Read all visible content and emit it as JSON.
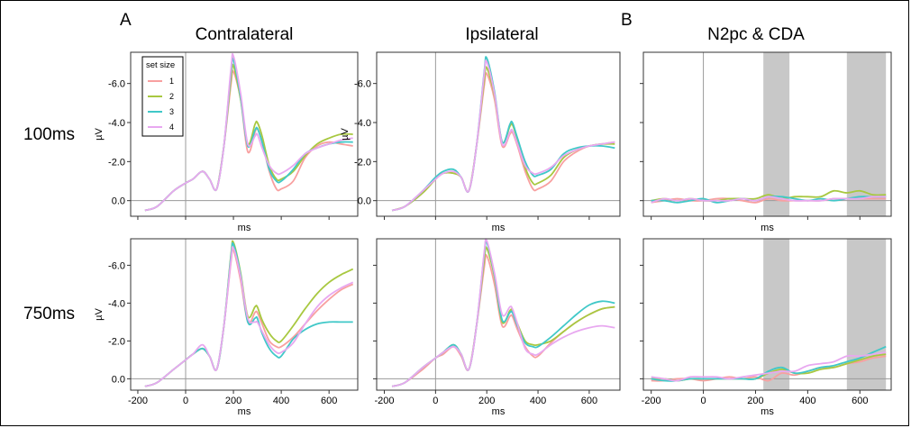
{
  "figure": {
    "panel_letters": [
      "A",
      "B"
    ],
    "column_titles": [
      "Contralateral",
      "Ipsilateral",
      "N2pc & CDA"
    ],
    "row_labels": [
      "100ms",
      "750ms"
    ],
    "legend": {
      "title": "set size",
      "entries": [
        "1",
        "2",
        "3",
        "4"
      ]
    },
    "colors": {
      "1": "#F8A0A0",
      "2": "#A8C840",
      "3": "#40C8C8",
      "4": "#E8A8F0"
    },
    "shade_color": "#C8C8C8"
  },
  "chart_data": [
    {
      "type": "line",
      "panel": "contralateral-100ms",
      "xlabel": "ms",
      "ylabel": "µV",
      "ylim": [
        0.8,
        -7.6
      ],
      "xlim": [
        -230,
        720
      ],
      "y_inverted": true,
      "yticks": [
        "-6.0",
        "-4.0",
        "-2.0",
        "0.0"
      ],
      "x": [
        -170,
        -120,
        -50,
        0,
        30,
        70,
        100,
        130,
        160,
        190,
        200,
        230,
        260,
        290,
        300,
        320,
        350,
        380,
        400,
        450,
        500,
        550,
        600,
        650,
        700
      ],
      "series": [
        {
          "name": "1",
          "values": [
            0.5,
            0.3,
            -0.5,
            -0.9,
            -1.1,
            -1.5,
            -1.1,
            -0.6,
            -2.8,
            -6.0,
            -6.6,
            -5.2,
            -2.5,
            -3.5,
            -3.7,
            -3.0,
            -1.5,
            -0.6,
            -0.6,
            -1.0,
            -2.2,
            -2.8,
            -3.0,
            -2.9,
            -2.8
          ]
        },
        {
          "name": "2",
          "values": [
            0.5,
            0.3,
            -0.5,
            -0.9,
            -1.1,
            -1.5,
            -1.1,
            -0.6,
            -2.8,
            -6.3,
            -6.9,
            -5.2,
            -2.9,
            -3.9,
            -4.0,
            -3.3,
            -1.8,
            -1.1,
            -1.1,
            -1.5,
            -2.3,
            -2.9,
            -3.2,
            -3.4,
            -3.4
          ]
        },
        {
          "name": "3",
          "values": [
            0.5,
            0.3,
            -0.5,
            -0.9,
            -1.1,
            -1.5,
            -1.1,
            -0.6,
            -2.8,
            -6.6,
            -7.2,
            -5.3,
            -2.8,
            -3.6,
            -3.7,
            -3.0,
            -1.6,
            -1.0,
            -1.0,
            -1.6,
            -2.4,
            -2.7,
            -2.9,
            -3.0,
            -3.0
          ]
        },
        {
          "name": "4",
          "values": [
            0.5,
            0.3,
            -0.5,
            -0.9,
            -1.1,
            -1.5,
            -1.1,
            -0.6,
            -2.8,
            -6.8,
            -7.4,
            -5.5,
            -2.9,
            -3.3,
            -3.4,
            -2.7,
            -1.8,
            -1.4,
            -1.4,
            -1.8,
            -2.4,
            -2.7,
            -2.9,
            -3.1,
            -3.2
          ]
        }
      ]
    },
    {
      "type": "line",
      "panel": "ipsilateral-100ms",
      "xlabel": "ms",
      "ylabel": "µV",
      "ylim": [
        0.8,
        -7.6
      ],
      "xlim": [
        -230,
        720
      ],
      "y_inverted": true,
      "yticks": [
        "-6.0",
        "-4.0",
        "-2.0",
        "0.0"
      ],
      "x": [
        -170,
        -120,
        -50,
        0,
        30,
        70,
        100,
        130,
        160,
        190,
        200,
        230,
        260,
        290,
        300,
        320,
        350,
        380,
        400,
        450,
        500,
        550,
        600,
        650,
        700
      ],
      "series": [
        {
          "name": "1",
          "values": [
            0.5,
            0.3,
            -0.4,
            -1.1,
            -1.4,
            -1.4,
            -1.2,
            -0.5,
            -2.8,
            -5.9,
            -6.5,
            -5.2,
            -2.8,
            -3.4,
            -3.5,
            -2.8,
            -1.5,
            -0.6,
            -0.6,
            -1.0,
            -2.0,
            -2.5,
            -2.8,
            -2.9,
            -3.0
          ]
        },
        {
          "name": "2",
          "values": [
            0.5,
            0.3,
            -0.4,
            -1.1,
            -1.4,
            -1.4,
            -1.2,
            -0.5,
            -2.8,
            -6.2,
            -6.8,
            -5.4,
            -3.0,
            -3.8,
            -3.9,
            -3.1,
            -1.7,
            -0.9,
            -0.9,
            -1.3,
            -2.2,
            -2.6,
            -2.8,
            -2.9,
            -2.9
          ]
        },
        {
          "name": "3",
          "values": [
            0.5,
            0.3,
            -0.5,
            -1.2,
            -1.5,
            -1.6,
            -1.2,
            -0.5,
            -2.8,
            -6.6,
            -7.3,
            -5.6,
            -3.0,
            -3.9,
            -4.0,
            -3.2,
            -2.0,
            -1.3,
            -1.3,
            -1.6,
            -2.4,
            -2.7,
            -2.8,
            -2.8,
            -2.7
          ]
        },
        {
          "name": "4",
          "values": [
            0.5,
            0.3,
            -0.5,
            -1.1,
            -1.4,
            -1.5,
            -1.2,
            -0.5,
            -2.8,
            -6.5,
            -7.1,
            -5.5,
            -2.9,
            -3.5,
            -3.6,
            -2.9,
            -1.8,
            -1.4,
            -1.4,
            -1.7,
            -2.3,
            -2.6,
            -2.8,
            -2.9,
            -3.0
          ]
        }
      ]
    },
    {
      "type": "line",
      "panel": "n2pc-cda-100ms",
      "xlabel": "ms",
      "ylabel": "",
      "ylim": [
        0.8,
        -7.6
      ],
      "xlim": [
        -230,
        720
      ],
      "y_inverted": true,
      "shaded_windows": [
        [
          230,
          330
        ],
        [
          550,
          700
        ]
      ],
      "x": [
        -200,
        -150,
        -100,
        -50,
        0,
        50,
        100,
        150,
        200,
        250,
        300,
        350,
        400,
        450,
        500,
        550,
        600,
        650,
        700
      ],
      "series": [
        {
          "name": "1",
          "values": [
            0.1,
            0.0,
            -0.1,
            0.0,
            0.0,
            -0.1,
            -0.1,
            0.0,
            0.1,
            -0.1,
            0.0,
            0.0,
            0.0,
            0.0,
            -0.1,
            -0.1,
            -0.1,
            -0.1,
            -0.1
          ]
        },
        {
          "name": "2",
          "values": [
            0.0,
            -0.1,
            0.0,
            -0.1,
            0.0,
            0.0,
            -0.1,
            -0.1,
            -0.1,
            -0.3,
            -0.1,
            -0.2,
            -0.2,
            -0.2,
            -0.5,
            -0.4,
            -0.5,
            -0.3,
            -0.3
          ]
        },
        {
          "name": "3",
          "values": [
            0.0,
            0.0,
            0.1,
            0.0,
            -0.1,
            0.1,
            0.0,
            -0.1,
            0.0,
            -0.2,
            -0.2,
            -0.1,
            0.0,
            -0.1,
            0.0,
            -0.1,
            -0.2,
            -0.2,
            -0.2
          ]
        },
        {
          "name": "4",
          "values": [
            0.1,
            -0.1,
            0.0,
            -0.1,
            0.0,
            0.0,
            0.0,
            -0.1,
            0.0,
            -0.2,
            -0.1,
            0.0,
            0.0,
            0.0,
            -0.1,
            -0.1,
            -0.1,
            -0.2,
            -0.2
          ]
        }
      ]
    },
    {
      "type": "line",
      "panel": "contralateral-750ms",
      "xlabel": "ms",
      "ylabel": "µV",
      "ylim": [
        0.6,
        -7.4
      ],
      "xlim": [
        -230,
        720
      ],
      "y_inverted": true,
      "yticks": [
        "-6.0",
        "-4.0",
        "-2.0",
        "0.0"
      ],
      "xticks": [
        "-200",
        "0",
        "200",
        "400",
        "600"
      ],
      "x": [
        -170,
        -120,
        -50,
        0,
        30,
        70,
        100,
        130,
        160,
        190,
        200,
        230,
        260,
        290,
        300,
        320,
        350,
        380,
        400,
        450,
        500,
        550,
        600,
        650,
        700
      ],
      "series": [
        {
          "name": "1",
          "values": [
            0.4,
            0.2,
            -0.5,
            -1.0,
            -1.3,
            -1.6,
            -1.2,
            -0.5,
            -2.8,
            -6.2,
            -6.8,
            -5.2,
            -3.0,
            -3.5,
            -3.5,
            -2.9,
            -2.0,
            -1.7,
            -1.7,
            -2.2,
            -2.9,
            -3.6,
            -4.2,
            -4.7,
            -5.0
          ]
        },
        {
          "name": "2",
          "values": [
            0.4,
            0.2,
            -0.5,
            -1.0,
            -1.3,
            -1.6,
            -1.2,
            -0.5,
            -2.8,
            -6.6,
            -7.2,
            -5.6,
            -3.3,
            -3.8,
            -3.8,
            -3.1,
            -2.4,
            -2.0,
            -2.0,
            -2.8,
            -3.7,
            -4.5,
            -5.1,
            -5.5,
            -5.8
          ]
        },
        {
          "name": "3",
          "values": [
            0.4,
            0.2,
            -0.5,
            -1.0,
            -1.3,
            -1.6,
            -1.2,
            -0.5,
            -2.8,
            -6.5,
            -7.1,
            -5.5,
            -3.0,
            -3.2,
            -3.2,
            -2.4,
            -1.6,
            -1.2,
            -1.2,
            -2.1,
            -2.6,
            -2.9,
            -3.0,
            -3.0,
            -3.0
          ]
        },
        {
          "name": "4",
          "values": [
            0.4,
            0.2,
            -0.5,
            -1.0,
            -1.3,
            -1.8,
            -1.2,
            -0.5,
            -2.8,
            -6.3,
            -6.9,
            -5.4,
            -3.2,
            -3.0,
            -3.0,
            -2.5,
            -1.8,
            -1.4,
            -1.4,
            -1.9,
            -2.9,
            -3.8,
            -4.4,
            -4.8,
            -5.1
          ]
        }
      ]
    },
    {
      "type": "line",
      "panel": "ipsilateral-750ms",
      "xlabel": "ms",
      "ylabel": "",
      "ylim": [
        0.6,
        -7.4
      ],
      "xlim": [
        -230,
        720
      ],
      "y_inverted": true,
      "xticks": [
        "-200",
        "0",
        "200",
        "400",
        "600"
      ],
      "x": [
        -170,
        -120,
        -50,
        0,
        30,
        70,
        100,
        130,
        160,
        190,
        200,
        230,
        260,
        290,
        300,
        320,
        350,
        380,
        400,
        450,
        500,
        550,
        600,
        650,
        700
      ],
      "series": [
        {
          "name": "1",
          "values": [
            0.4,
            0.2,
            -0.5,
            -1.1,
            -1.3,
            -1.7,
            -1.2,
            -0.5,
            -2.8,
            -5.9,
            -6.5,
            -5.0,
            -2.8,
            -3.3,
            -3.3,
            -2.6,
            -1.7,
            -1.2,
            -1.2,
            -1.9,
            -2.5,
            -3.0,
            -3.4,
            -3.7,
            -3.8
          ]
        },
        {
          "name": "2",
          "values": [
            0.4,
            0.2,
            -0.6,
            -1.1,
            -1.4,
            -1.8,
            -1.3,
            -0.5,
            -2.8,
            -6.3,
            -6.9,
            -5.4,
            -3.0,
            -3.6,
            -3.6,
            -2.9,
            -2.0,
            -1.8,
            -1.8,
            -2.0,
            -2.5,
            -3.0,
            -3.4,
            -3.7,
            -3.8
          ]
        },
        {
          "name": "3",
          "values": [
            0.4,
            0.2,
            -0.6,
            -1.1,
            -1.4,
            -1.8,
            -1.3,
            -0.5,
            -2.8,
            -6.6,
            -7.2,
            -5.5,
            -3.1,
            -3.5,
            -3.5,
            -2.8,
            -1.9,
            -1.7,
            -1.7,
            -2.2,
            -2.8,
            -3.4,
            -3.9,
            -4.1,
            -4.0
          ]
        },
        {
          "name": "4",
          "values": [
            0.4,
            0.2,
            -0.6,
            -1.1,
            -1.4,
            -1.7,
            -1.3,
            -0.5,
            -2.8,
            -6.7,
            -7.3,
            -5.6,
            -3.4,
            -3.8,
            -3.7,
            -2.9,
            -1.6,
            -1.3,
            -1.3,
            -1.8,
            -2.2,
            -2.5,
            -2.7,
            -2.8,
            -2.7
          ]
        }
      ]
    },
    {
      "type": "line",
      "panel": "n2pc-cda-750ms",
      "xlabel": "ms",
      "ylabel": "",
      "ylim": [
        0.6,
        -7.4
      ],
      "xlim": [
        -230,
        720
      ],
      "y_inverted": true,
      "xticks": [
        "-200",
        "0",
        "200",
        "400",
        "600"
      ],
      "shaded_windows": [
        [
          230,
          330
        ],
        [
          550,
          700
        ]
      ],
      "x": [
        -200,
        -150,
        -100,
        -50,
        0,
        50,
        100,
        150,
        200,
        250,
        300,
        350,
        400,
        450,
        500,
        550,
        600,
        650,
        700
      ],
      "series": [
        {
          "name": "1",
          "values": [
            0.1,
            0.1,
            0.0,
            0.0,
            0.1,
            0.0,
            -0.1,
            0.0,
            -0.1,
            0.1,
            -0.3,
            -0.2,
            -0.4,
            -0.6,
            -0.6,
            -0.8,
            -0.9,
            -1.1,
            -1.2
          ]
        },
        {
          "name": "2",
          "values": [
            0.0,
            0.0,
            0.1,
            0.0,
            0.0,
            0.0,
            0.0,
            0.0,
            0.0,
            -0.3,
            -0.5,
            -0.3,
            -0.3,
            -0.5,
            -0.6,
            -0.8,
            -1.0,
            -1.2,
            -1.3
          ]
        },
        {
          "name": "3",
          "values": [
            0.0,
            0.1,
            0.1,
            0.0,
            0.0,
            0.0,
            0.0,
            0.0,
            0.0,
            -0.4,
            -0.6,
            -0.3,
            -0.4,
            -0.6,
            -0.7,
            -0.9,
            -1.1,
            -1.4,
            -1.7
          ]
        },
        {
          "name": "4",
          "values": [
            -0.1,
            0.0,
            0.1,
            -0.1,
            -0.1,
            -0.1,
            0.0,
            -0.1,
            -0.2,
            -0.3,
            -0.4,
            -0.4,
            -0.7,
            -0.8,
            -0.9,
            -1.2,
            -1.2,
            -1.3,
            -1.4
          ]
        }
      ]
    }
  ]
}
